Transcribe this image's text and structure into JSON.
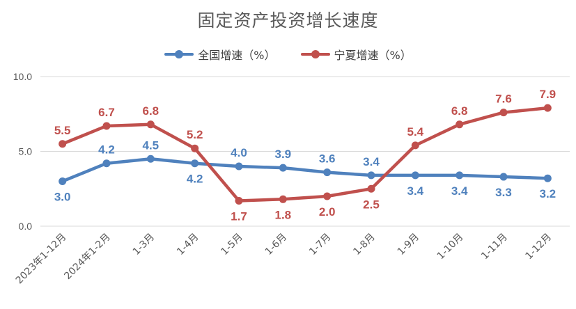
{
  "chart_data": {
    "type": "line",
    "title": "固定资产投资增长速度",
    "categories": [
      "2023年1-12月",
      "2024年1-2月",
      "1-3月",
      "1-4月",
      "1-5月",
      "1-6月",
      "1-7月",
      "1-8月",
      "1-9月",
      "1-10月",
      "1-11月",
      "1-12月"
    ],
    "series": [
      {
        "name": "全国增速（%）",
        "color": "#4f81bd",
        "values": [
          3.0,
          4.2,
          4.5,
          4.2,
          4.0,
          3.9,
          3.6,
          3.4,
          3.4,
          3.4,
          3.3,
          3.2
        ],
        "labels": [
          "3.0",
          "4.2",
          "4.5",
          "4.2",
          "4.0",
          "3.9",
          "3.6",
          "3.4",
          "3.4",
          "3.4",
          "3.3",
          "3.2"
        ]
      },
      {
        "name": "宁夏增速（%）",
        "color": "#c0504d",
        "values": [
          5.5,
          6.7,
          6.8,
          5.2,
          1.7,
          1.8,
          2.0,
          2.5,
          5.4,
          6.8,
          7.6,
          7.9
        ],
        "labels": [
          "5.5",
          "6.7",
          "6.8",
          "5.2",
          "1.7",
          "1.8",
          "2.0",
          "2.5",
          "5.4",
          "6.8",
          "7.6",
          "7.9"
        ]
      }
    ],
    "yticks": [
      "0.0",
      "5.0",
      "10.0"
    ],
    "ylim": [
      0,
      10
    ],
    "grid": true,
    "legend_position": "top"
  }
}
